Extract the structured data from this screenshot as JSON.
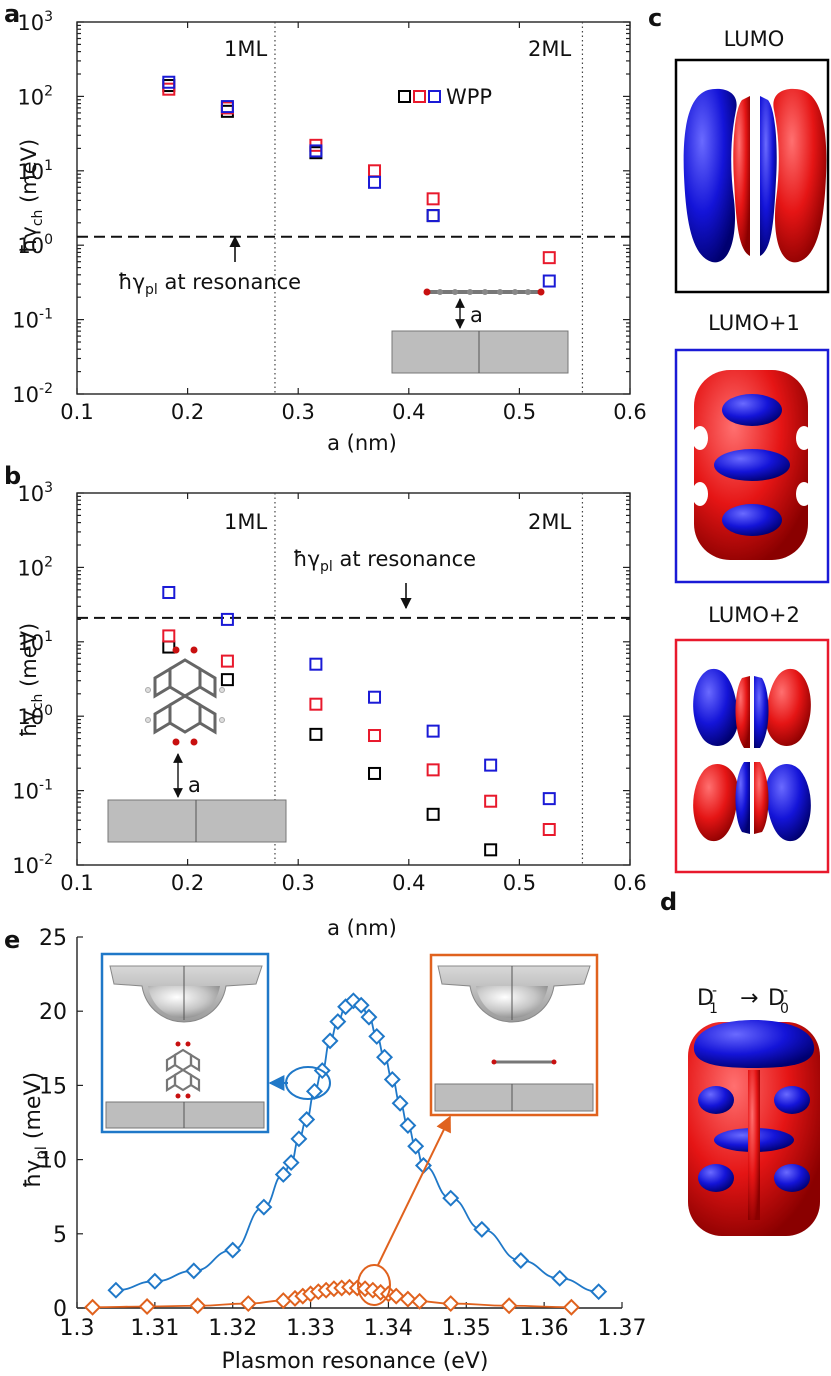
{
  "colors": {
    "black": "#000000",
    "red": "#e8192c",
    "blue": "#1a1ad6",
    "blue2": "#1f78c8",
    "orange": "#e0621e",
    "orbital_red": "#e51515",
    "orbital_blue": "#1414d8",
    "substrate": "#bdbdbd"
  },
  "panel_labels": {
    "a": "a",
    "b": "b",
    "c": "c",
    "d": "d",
    "e": "e"
  },
  "orbitals": {
    "lumo": "LUMO",
    "lumo1": "LUMO+1",
    "lumo2": "LUMO+2",
    "transition_from": "D",
    "transition_from_sup": "-",
    "transition_from_sub": "1",
    "transition_arrow": "→",
    "transition_to": "D",
    "transition_to_sup": "-",
    "transition_to_sub": "0"
  },
  "chart_data": [
    {
      "panel": "a",
      "type": "scatter",
      "xlabel": "a (nm)",
      "ylabel_main": "ħγ",
      "ylabel_sub": "ch",
      "ylabel_unit": " (meV)",
      "xlim": [
        0.1,
        0.6
      ],
      "ylim": [
        0.01,
        1000
      ],
      "yscale": "log",
      "xticks": [
        "0.1",
        "0.2",
        "0.3",
        "0.4",
        "0.5",
        "0.6"
      ],
      "yticks_base": [
        "10",
        "10",
        "10",
        "10",
        "10",
        "10"
      ],
      "yticks_exp": [
        "-2",
        "-1",
        "0",
        "1",
        "2",
        "3"
      ],
      "region_lines": [
        0.279,
        0.557
      ],
      "region_labels": [
        "1ML",
        "2ML"
      ],
      "legend_label": "WPP",
      "annotation_main": "ħγ",
      "annotation_sub": "pl",
      "annotation_rest": " at resonance",
      "inset_label": "a",
      "hline": 1.3,
      "series": [
        {
          "color": "black",
          "x": [
            0.183,
            0.236,
            0.316,
            0.422
          ],
          "y": [
            140,
            63,
            17.5,
            2.5
          ]
        },
        {
          "color": "red",
          "x": [
            0.183,
            0.236,
            0.316,
            0.369,
            0.422,
            0.527
          ],
          "y": [
            125,
            70,
            22,
            10,
            4.2,
            0.68
          ]
        },
        {
          "color": "blue",
          "x": [
            0.183,
            0.236,
            0.316,
            0.369,
            0.422,
            0.527
          ],
          "y": [
            155,
            73,
            18.5,
            7,
            2.5,
            0.33
          ]
        }
      ]
    },
    {
      "panel": "b",
      "type": "scatter",
      "xlabel": "a (nm)",
      "ylabel_main": "ħγ",
      "ylabel_sub": "ch",
      "ylabel_unit": " (meV)",
      "xlim": [
        0.1,
        0.6
      ],
      "ylim": [
        0.01,
        1000
      ],
      "yscale": "log",
      "xticks": [
        "0.1",
        "0.2",
        "0.3",
        "0.4",
        "0.5",
        "0.6"
      ],
      "yticks_base": [
        "10",
        "10",
        "10",
        "10",
        "10",
        "10"
      ],
      "yticks_exp": [
        "-2",
        "-1",
        "0",
        "1",
        "2",
        "3"
      ],
      "region_lines": [
        0.279,
        0.557
      ],
      "region_labels": [
        "1ML",
        "2ML"
      ],
      "annotation_main": "ħγ",
      "annotation_sub": "pl",
      "annotation_rest": " at resonance",
      "inset_label": "a",
      "hline": 21,
      "series": [
        {
          "color": "black",
          "x": [
            0.183,
            0.236,
            0.316,
            0.369,
            0.422,
            0.474
          ],
          "y": [
            8.5,
            3.1,
            0.57,
            0.17,
            0.048,
            0.016
          ]
        },
        {
          "color": "red",
          "x": [
            0.183,
            0.236,
            0.316,
            0.369,
            0.422,
            0.474,
            0.527
          ],
          "y": [
            12,
            5.5,
            1.45,
            0.55,
            0.19,
            0.072,
            0.03
          ]
        },
        {
          "color": "blue",
          "x": [
            0.183,
            0.236,
            0.316,
            0.369,
            0.422,
            0.474,
            0.527
          ],
          "y": [
            46,
            20,
            5,
            1.8,
            0.63,
            0.22,
            0.078
          ]
        }
      ]
    },
    {
      "panel": "e",
      "type": "line",
      "xlabel": "Plasmon resonance (eV)",
      "ylabel_main": "ħγ",
      "ylabel_sub": "pl",
      "ylabel_unit": " (meV)",
      "xlim": [
        1.3,
        1.37
      ],
      "ylim": [
        0,
        25
      ],
      "xticks": [
        "1.3",
        "1.31",
        "1.32",
        "1.33",
        "1.34",
        "1.35",
        "1.36",
        "1.37"
      ],
      "yticks": [
        "0",
        "5",
        "10",
        "15",
        "20",
        "25"
      ],
      "series": [
        {
          "color": "blue2",
          "x": [
            1.305,
            1.31,
            1.315,
            1.32,
            1.324,
            1.3265,
            1.3275,
            1.3285,
            1.3295,
            1.3305,
            1.3315,
            1.3325,
            1.3335,
            1.3345,
            1.3355,
            1.3365,
            1.3375,
            1.3385,
            1.3395,
            1.3405,
            1.3415,
            1.3425,
            1.3435,
            1.3445,
            1.348,
            1.352,
            1.357,
            1.362,
            1.367
          ],
          "y": [
            1.2,
            1.8,
            2.5,
            3.9,
            6.8,
            9.0,
            9.8,
            11.4,
            12.7,
            14.6,
            16.0,
            18.0,
            19.3,
            20.3,
            20.7,
            20.4,
            19.6,
            18.3,
            16.9,
            15.4,
            13.8,
            12.3,
            10.9,
            9.6,
            7.4,
            5.3,
            3.2,
            2.0,
            1.1
          ]
        },
        {
          "color": "orange",
          "x": [
            1.302,
            1.309,
            1.3155,
            1.322,
            1.3265,
            1.328,
            1.329,
            1.33,
            1.331,
            1.332,
            1.333,
            1.334,
            1.335,
            1.336,
            1.337,
            1.338,
            1.339,
            1.34,
            1.341,
            1.3425,
            1.344,
            1.348,
            1.3555,
            1.3635
          ],
          "y": [
            0.05,
            0.1,
            0.15,
            0.3,
            0.5,
            0.65,
            0.8,
            0.95,
            1.1,
            1.2,
            1.3,
            1.35,
            1.4,
            1.35,
            1.3,
            1.2,
            1.05,
            0.95,
            0.8,
            0.6,
            0.45,
            0.3,
            0.15,
            0.05
          ]
        }
      ]
    }
  ]
}
